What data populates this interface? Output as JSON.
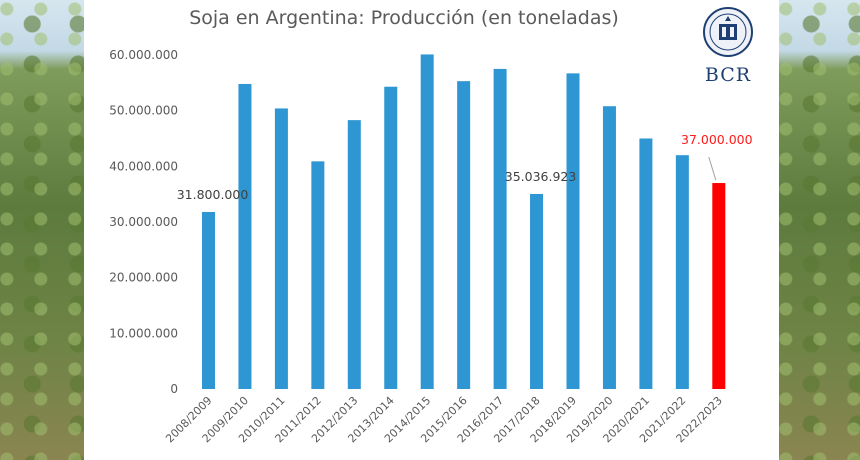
{
  "chart_data": {
    "type": "bar",
    "title": "Soja en Argentina: Producción (en toneladas)",
    "categories": [
      "2008/2009",
      "2009/2010",
      "2010/2011",
      "2011/2012",
      "2012/2013",
      "2013/2014",
      "2014/2015",
      "2015/2016",
      "2016/2017",
      "2017/2018",
      "2018/2019",
      "2019/2020",
      "2020/2021",
      "2021/2022",
      "2022/2023"
    ],
    "values": [
      31800000,
      54800000,
      50400000,
      40900000,
      48300000,
      54300000,
      60100000,
      55300000,
      57500000,
      35036923,
      56700000,
      50800000,
      45000000,
      42000000,
      37000000
    ],
    "ylim": [
      0,
      60000000
    ],
    "yticks": [
      "0",
      "10.000.000",
      "20.000.000",
      "30.000.000",
      "40.000.000",
      "50.000.000",
      "60.000.000"
    ],
    "grid": false,
    "data_labels": [
      {
        "index": 0,
        "text": "31.800.000"
      },
      {
        "index": 9,
        "text": "35.036.923"
      },
      {
        "index": 14,
        "text": "37.000.000",
        "highlight": true
      }
    ],
    "bar_color": "#2e96d3",
    "highlight_color": "#ff0000",
    "highlight_index": 14
  },
  "logo": {
    "text": "BCR",
    "emblem": "bcr-seal-icon"
  }
}
